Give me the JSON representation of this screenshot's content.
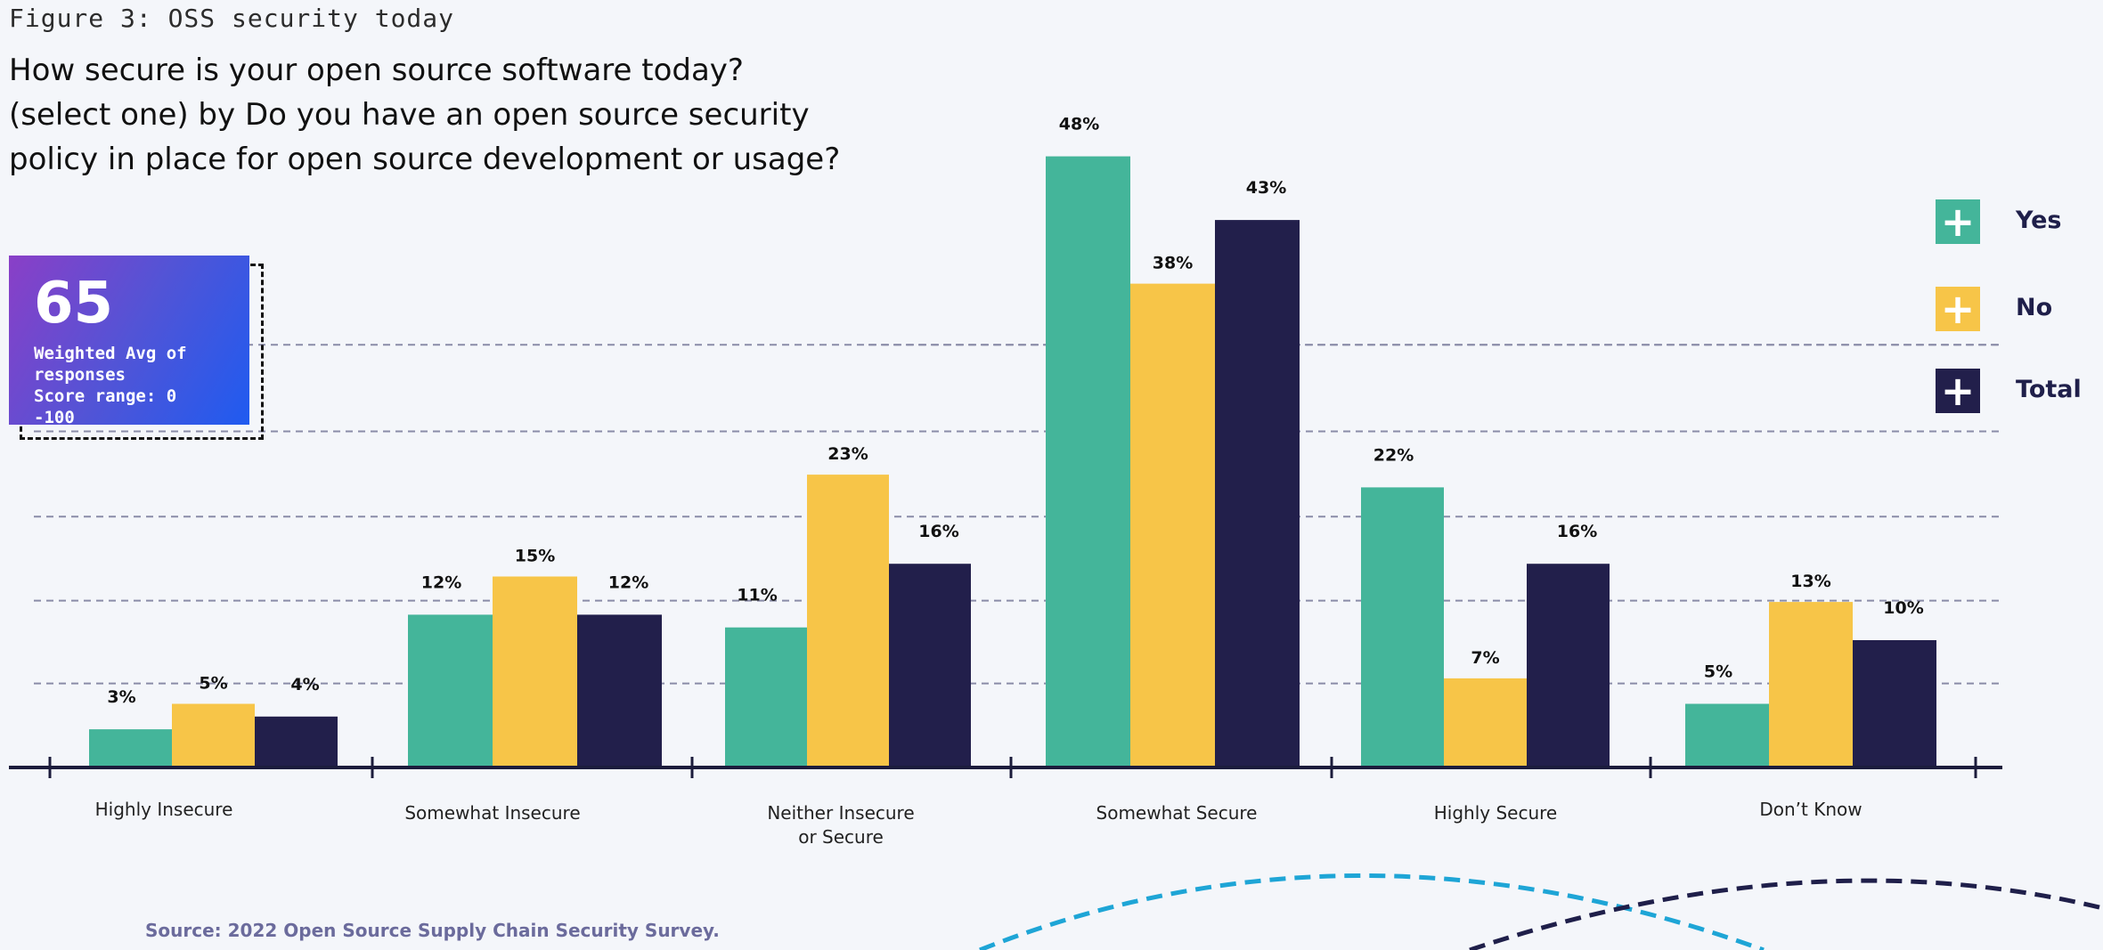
{
  "figure_label": "Figure 3: OSS security today",
  "score": {
    "value": "65",
    "line1": "Weighted Avg of\nresponses",
    "line2": "Score range: 0 -100"
  },
  "source": "Source: 2022 Open Source Supply Chain Security Survey.",
  "colors": {
    "yes": "#44b59a",
    "no": "#f7c548",
    "total": "#221f4b",
    "grid": "#8a8ca8",
    "axis": "#1c1c3c"
  },
  "icons": {
    "legend": "plus-icon"
  },
  "chart_data": {
    "type": "bar",
    "title": "How secure is your open source software today? (select one) by Do you have an open source security policy in place for open source development or usage?",
    "categories": [
      "Highly Insecure",
      "Somewhat Insecure",
      "Neither Insecure or Secure",
      "Somewhat Secure",
      "Highly Secure",
      "Don’t Know"
    ],
    "category_lines": [
      [
        "Highly Insecure"
      ],
      [
        "Somewhat Insecure"
      ],
      [
        "Neither Insecure",
        "or Secure"
      ],
      [
        "Somewhat Secure"
      ],
      [
        "Highly Secure"
      ],
      [
        "Don’t Know"
      ]
    ],
    "series": [
      {
        "name": "Yes",
        "values": [
          3,
          12,
          11,
          48,
          22,
          5
        ]
      },
      {
        "name": "No",
        "values": [
          5,
          15,
          23,
          38,
          7,
          13
        ]
      },
      {
        "name": "Total",
        "values": [
          4,
          12,
          16,
          43,
          16,
          10
        ]
      }
    ],
    "value_suffix": "%",
    "ylim": [
      0,
      50
    ],
    "grid": true,
    "legend_position": "right"
  }
}
